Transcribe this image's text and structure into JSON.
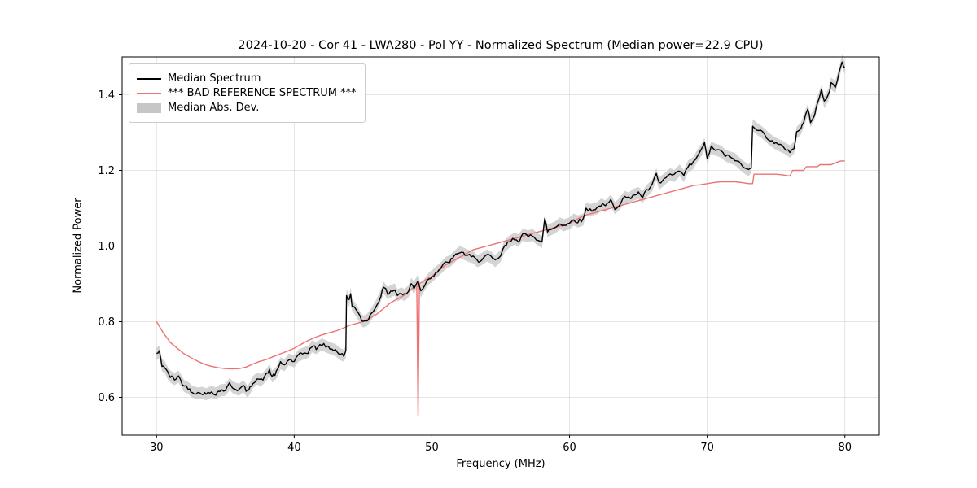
{
  "figure": {
    "title": "2024-10-20 - Cor 41 - LWA280 - Pol YY - Normalized Spectrum (Median power=22.9 CPU)",
    "xlabel": "Frequency (MHz)",
    "ylabel": "Normalized Power"
  },
  "legend": {
    "items": [
      {
        "label": "Median Spectrum",
        "type": "line",
        "color": "#000000"
      },
      {
        "label": "*** BAD REFERENCE SPECTRUM ***",
        "type": "line",
        "color": "#ee7272"
      },
      {
        "label": "Median Abs. Dev.",
        "type": "patch",
        "color": "#c6c6c6"
      }
    ]
  },
  "chart_data": {
    "type": "line",
    "title": "2024-10-20 - Cor 41 - LWA280 - Pol YY - Normalized Spectrum (Median power=22.9 CPU)",
    "xlabel": "Frequency (MHz)",
    "ylabel": "Normalized Power",
    "xlim": [
      27.5,
      82.5
    ],
    "ylim": [
      0.5,
      1.5
    ],
    "xticks": [
      30,
      40,
      50,
      60,
      70,
      80
    ],
    "xtick_labels": [
      "30",
      "40",
      "50",
      "60",
      "70",
      "80"
    ],
    "yticks": [
      0.6,
      0.8,
      1.0,
      1.2,
      1.4
    ],
    "ytick_labels": [
      "0.6",
      "0.8",
      "1.0",
      "1.2",
      "1.4"
    ],
    "grid": true,
    "legend_position": "upper left",
    "noise_amplitude": 0.005,
    "band": {
      "name": "Median Abs. Dev.",
      "color": "#c6c6c6",
      "halfwidth": 0.016,
      "follows": "Median Spectrum"
    },
    "series": [
      {
        "name": "Median Spectrum",
        "color": "#000000",
        "width": 1.4,
        "noisy": true,
        "points": [
          [
            30.0,
            0.715
          ],
          [
            30.2,
            0.72
          ],
          [
            30.4,
            0.685
          ],
          [
            30.6,
            0.68
          ],
          [
            30.8,
            0.665
          ],
          [
            31.0,
            0.655
          ],
          [
            31.3,
            0.648
          ],
          [
            31.6,
            0.655
          ],
          [
            32.0,
            0.63
          ],
          [
            32.3,
            0.625
          ],
          [
            32.6,
            0.615
          ],
          [
            33.0,
            0.61
          ],
          [
            33.3,
            0.612
          ],
          [
            33.6,
            0.608
          ],
          [
            34.0,
            0.615
          ],
          [
            34.3,
            0.61
          ],
          [
            34.6,
            0.618
          ],
          [
            35.0,
            0.62
          ],
          [
            35.3,
            0.635
          ],
          [
            35.6,
            0.625
          ],
          [
            36.0,
            0.62
          ],
          [
            36.3,
            0.63
          ],
          [
            36.6,
            0.615
          ],
          [
            36.8,
            0.625
          ],
          [
            37.0,
            0.64
          ],
          [
            37.3,
            0.65
          ],
          [
            37.6,
            0.645
          ],
          [
            38.0,
            0.66
          ],
          [
            38.2,
            0.672
          ],
          [
            38.4,
            0.655
          ],
          [
            38.7,
            0.665
          ],
          [
            39.0,
            0.69
          ],
          [
            39.3,
            0.685
          ],
          [
            39.6,
            0.7
          ],
          [
            40.0,
            0.695
          ],
          [
            40.3,
            0.71
          ],
          [
            40.6,
            0.715
          ],
          [
            41.0,
            0.72
          ],
          [
            41.3,
            0.735
          ],
          [
            41.6,
            0.73
          ],
          [
            42.0,
            0.74
          ],
          [
            42.3,
            0.735
          ],
          [
            42.6,
            0.73
          ],
          [
            43.0,
            0.725
          ],
          [
            43.3,
            0.715
          ],
          [
            43.6,
            0.71
          ],
          [
            43.75,
            0.72
          ],
          [
            43.8,
            0.87
          ],
          [
            44.0,
            0.855
          ],
          [
            44.1,
            0.875
          ],
          [
            44.2,
            0.845
          ],
          [
            44.5,
            0.83
          ],
          [
            44.8,
            0.81
          ],
          [
            45.0,
            0.8
          ],
          [
            45.3,
            0.805
          ],
          [
            45.6,
            0.82
          ],
          [
            46.0,
            0.845
          ],
          [
            46.3,
            0.87
          ],
          [
            46.5,
            0.89
          ],
          [
            46.8,
            0.875
          ],
          [
            47.0,
            0.88
          ],
          [
            47.3,
            0.885
          ],
          [
            47.5,
            0.87
          ],
          [
            47.8,
            0.875
          ],
          [
            48.0,
            0.87
          ],
          [
            48.3,
            0.88
          ],
          [
            48.5,
            0.9
          ],
          [
            48.7,
            0.89
          ],
          [
            49.0,
            0.91
          ],
          [
            49.2,
            0.88
          ],
          [
            49.5,
            0.9
          ],
          [
            49.8,
            0.915
          ],
          [
            50.0,
            0.92
          ],
          [
            50.3,
            0.93
          ],
          [
            50.6,
            0.94
          ],
          [
            51.0,
            0.955
          ],
          [
            51.3,
            0.96
          ],
          [
            51.6,
            0.97
          ],
          [
            52.0,
            0.985
          ],
          [
            52.3,
            0.98
          ],
          [
            52.6,
            0.975
          ],
          [
            53.0,
            0.97
          ],
          [
            53.3,
            0.96
          ],
          [
            53.6,
            0.965
          ],
          [
            54.0,
            0.975
          ],
          [
            54.3,
            0.97
          ],
          [
            54.6,
            0.96
          ],
          [
            55.0,
            0.975
          ],
          [
            55.3,
            1.0
          ],
          [
            55.6,
            1.01
          ],
          [
            56.0,
            1.02
          ],
          [
            56.3,
            1.015
          ],
          [
            56.6,
            1.03
          ],
          [
            57.0,
            1.025
          ],
          [
            57.3,
            1.03
          ],
          [
            57.6,
            1.02
          ],
          [
            58.0,
            1.01
          ],
          [
            58.2,
            1.07
          ],
          [
            58.4,
            1.04
          ],
          [
            58.7,
            1.045
          ],
          [
            59.0,
            1.05
          ],
          [
            59.3,
            1.06
          ],
          [
            59.6,
            1.055
          ],
          [
            60.0,
            1.06
          ],
          [
            60.3,
            1.07
          ],
          [
            60.6,
            1.065
          ],
          [
            61.0,
            1.07
          ],
          [
            61.2,
            1.1
          ],
          [
            61.5,
            1.095
          ],
          [
            62.0,
            1.1
          ],
          [
            62.3,
            1.11
          ],
          [
            62.6,
            1.105
          ],
          [
            63.0,
            1.12
          ],
          [
            63.3,
            1.1
          ],
          [
            63.6,
            1.11
          ],
          [
            64.0,
            1.13
          ],
          [
            64.3,
            1.125
          ],
          [
            64.6,
            1.135
          ],
          [
            65.0,
            1.14
          ],
          [
            65.3,
            1.13
          ],
          [
            65.6,
            1.145
          ],
          [
            66.0,
            1.16
          ],
          [
            66.3,
            1.19
          ],
          [
            66.5,
            1.165
          ],
          [
            67.0,
            1.18
          ],
          [
            67.3,
            1.19
          ],
          [
            67.6,
            1.185
          ],
          [
            68.0,
            1.2
          ],
          [
            68.3,
            1.185
          ],
          [
            68.6,
            1.21
          ],
          [
            69.0,
            1.22
          ],
          [
            69.3,
            1.24
          ],
          [
            69.6,
            1.255
          ],
          [
            69.8,
            1.27
          ],
          [
            70.0,
            1.235
          ],
          [
            70.3,
            1.26
          ],
          [
            70.6,
            1.255
          ],
          [
            71.0,
            1.25
          ],
          [
            71.3,
            1.24
          ],
          [
            71.6,
            1.235
          ],
          [
            72.0,
            1.23
          ],
          [
            72.3,
            1.22
          ],
          [
            72.6,
            1.21
          ],
          [
            73.0,
            1.2
          ],
          [
            73.2,
            1.21
          ],
          [
            73.3,
            1.32
          ],
          [
            73.6,
            1.31
          ],
          [
            74.0,
            1.3
          ],
          [
            74.3,
            1.29
          ],
          [
            74.6,
            1.28
          ],
          [
            75.0,
            1.27
          ],
          [
            75.3,
            1.265
          ],
          [
            75.6,
            1.26
          ],
          [
            76.0,
            1.25
          ],
          [
            76.3,
            1.26
          ],
          [
            76.5,
            1.3
          ],
          [
            76.8,
            1.31
          ],
          [
            77.0,
            1.33
          ],
          [
            77.3,
            1.36
          ],
          [
            77.5,
            1.33
          ],
          [
            77.8,
            1.35
          ],
          [
            78.0,
            1.38
          ],
          [
            78.3,
            1.41
          ],
          [
            78.5,
            1.38
          ],
          [
            78.8,
            1.4
          ],
          [
            79.0,
            1.43
          ],
          [
            79.3,
            1.42
          ],
          [
            79.6,
            1.46
          ],
          [
            79.8,
            1.49
          ],
          [
            80.0,
            1.47
          ]
        ]
      },
      {
        "name": "*** BAD REFERENCE SPECTRUM ***",
        "color": "#ee7272",
        "width": 1.4,
        "noisy": false,
        "points": [
          [
            30.0,
            0.8
          ],
          [
            30.5,
            0.77
          ],
          [
            31.0,
            0.745
          ],
          [
            31.5,
            0.73
          ],
          [
            32.0,
            0.715
          ],
          [
            32.5,
            0.705
          ],
          [
            33.0,
            0.695
          ],
          [
            33.5,
            0.687
          ],
          [
            34.0,
            0.682
          ],
          [
            34.5,
            0.678
          ],
          [
            35.0,
            0.676
          ],
          [
            35.5,
            0.675
          ],
          [
            36.0,
            0.676
          ],
          [
            36.5,
            0.68
          ],
          [
            37.0,
            0.688
          ],
          [
            37.5,
            0.695
          ],
          [
            38.0,
            0.7
          ],
          [
            38.5,
            0.708
          ],
          [
            39.0,
            0.715
          ],
          [
            39.5,
            0.722
          ],
          [
            40.0,
            0.73
          ],
          [
            40.5,
            0.74
          ],
          [
            41.0,
            0.75
          ],
          [
            41.5,
            0.758
          ],
          [
            42.0,
            0.765
          ],
          [
            42.5,
            0.77
          ],
          [
            43.0,
            0.775
          ],
          [
            43.5,
            0.782
          ],
          [
            44.0,
            0.79
          ],
          [
            44.5,
            0.795
          ],
          [
            45.0,
            0.8
          ],
          [
            45.5,
            0.81
          ],
          [
            46.0,
            0.82
          ],
          [
            46.5,
            0.835
          ],
          [
            47.0,
            0.85
          ],
          [
            47.5,
            0.86
          ],
          [
            48.0,
            0.87
          ],
          [
            48.5,
            0.885
          ],
          [
            48.9,
            0.9
          ],
          [
            49.0,
            0.55
          ],
          [
            49.1,
            0.9
          ],
          [
            49.5,
            0.91
          ],
          [
            50.0,
            0.92
          ],
          [
            50.5,
            0.935
          ],
          [
            51.0,
            0.95
          ],
          [
            51.5,
            0.96
          ],
          [
            52.0,
            0.97
          ],
          [
            52.5,
            0.98
          ],
          [
            53.0,
            0.99
          ],
          [
            53.5,
            0.995
          ],
          [
            54.0,
            1.0
          ],
          [
            54.5,
            1.005
          ],
          [
            55.0,
            1.01
          ],
          [
            55.5,
            1.015
          ],
          [
            56.0,
            1.02
          ],
          [
            56.5,
            1.025
          ],
          [
            57.0,
            1.03
          ],
          [
            57.5,
            1.035
          ],
          [
            58.0,
            1.04
          ],
          [
            58.5,
            1.045
          ],
          [
            59.0,
            1.05
          ],
          [
            59.5,
            1.055
          ],
          [
            60.0,
            1.06
          ],
          [
            60.5,
            1.07
          ],
          [
            61.0,
            1.08
          ],
          [
            61.5,
            1.085
          ],
          [
            62.0,
            1.09
          ],
          [
            62.5,
            1.095
          ],
          [
            63.0,
            1.1
          ],
          [
            63.5,
            1.105
          ],
          [
            64.0,
            1.11
          ],
          [
            64.5,
            1.115
          ],
          [
            65.0,
            1.12
          ],
          [
            65.5,
            1.125
          ],
          [
            66.0,
            1.13
          ],
          [
            66.5,
            1.135
          ],
          [
            67.0,
            1.14
          ],
          [
            67.5,
            1.145
          ],
          [
            68.0,
            1.15
          ],
          [
            68.5,
            1.155
          ],
          [
            69.0,
            1.16
          ],
          [
            69.5,
            1.162
          ],
          [
            70.0,
            1.165
          ],
          [
            70.5,
            1.168
          ],
          [
            71.0,
            1.17
          ],
          [
            71.5,
            1.17
          ],
          [
            72.0,
            1.17
          ],
          [
            72.5,
            1.168
          ],
          [
            73.0,
            1.165
          ],
          [
            73.3,
            1.165
          ],
          [
            73.4,
            1.19
          ],
          [
            74.0,
            1.19
          ],
          [
            74.5,
            1.19
          ],
          [
            75.0,
            1.19
          ],
          [
            75.5,
            1.188
          ],
          [
            76.0,
            1.185
          ],
          [
            76.2,
            1.2
          ],
          [
            77.0,
            1.2
          ],
          [
            77.2,
            1.21
          ],
          [
            78.0,
            1.21
          ],
          [
            78.2,
            1.215
          ],
          [
            79.0,
            1.215
          ],
          [
            79.3,
            1.22
          ],
          [
            79.7,
            1.225
          ],
          [
            80.0,
            1.225
          ]
        ]
      }
    ]
  }
}
